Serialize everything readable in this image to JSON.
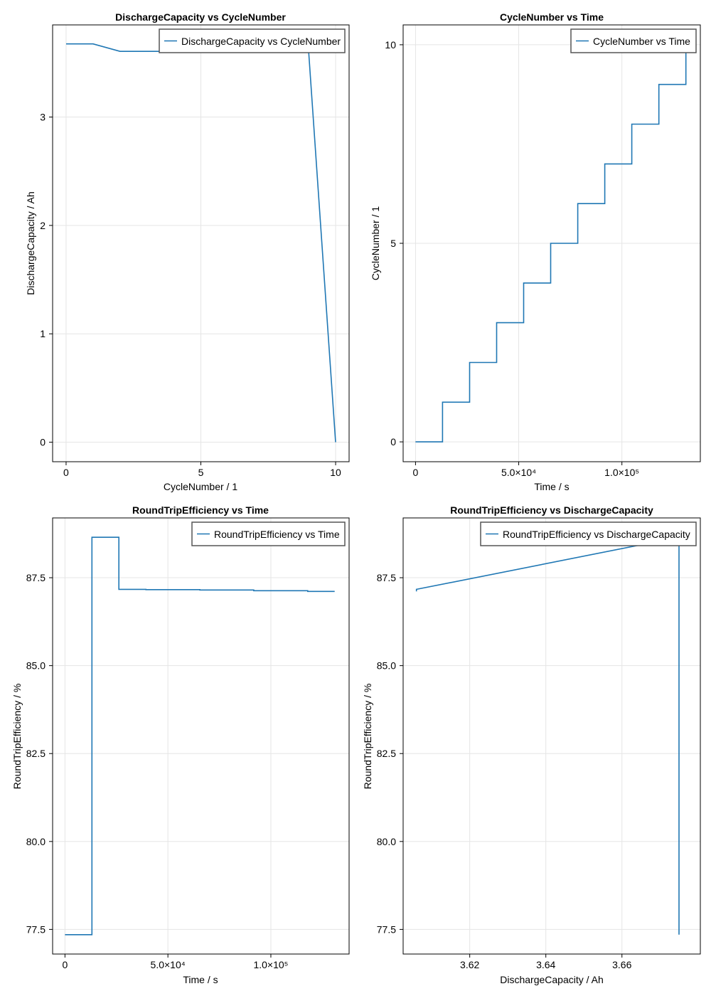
{
  "colors": {
    "series": "#1f77b4",
    "grid": "#e5e5e5",
    "frame": "#000000"
  },
  "chart_data": [
    {
      "type": "line",
      "title": "DischargeCapacity vs CycleNumber",
      "xlabel": "CycleNumber  /  1",
      "ylabel": "DischargeCapacity  / Ah",
      "xlim": [
        -0.5,
        10.5
      ],
      "ylim": [
        -0.18,
        3.85
      ],
      "xticks": [
        0,
        5,
        10
      ],
      "xtick_labels": [
        "0",
        "5",
        "10"
      ],
      "yticks": [
        0,
        1,
        2,
        3
      ],
      "ytick_labels": [
        "0",
        "1",
        "2",
        "3"
      ],
      "legend": "top-right",
      "grid": true,
      "series": [
        {
          "name": "DischargeCapacity vs CycleNumber",
          "x": [
            0,
            1,
            2,
            3,
            4,
            5,
            6,
            7,
            8,
            9,
            10
          ],
          "y": [
            3.675,
            3.675,
            3.606,
            3.606,
            3.606,
            3.606,
            3.606,
            3.606,
            3.606,
            3.606,
            0
          ]
        }
      ]
    },
    {
      "type": "line",
      "title": "CycleNumber vs Time",
      "xlabel": "Time  /  s",
      "ylabel": "CycleNumber  /  1",
      "xlim": [
        -6000,
        138000
      ],
      "ylim": [
        -0.5,
        10.5
      ],
      "xticks": [
        0,
        50000,
        100000
      ],
      "xtick_labels": [
        "0",
        "5.0×10⁴",
        "1.0×10⁵"
      ],
      "yticks": [
        0,
        5,
        10
      ],
      "ytick_labels": [
        "0",
        "5",
        "10"
      ],
      "legend": "top-right",
      "grid": true,
      "series": [
        {
          "name": "CycleNumber vs Time",
          "x": [
            0,
            13100,
            13100,
            26200,
            26200,
            39300,
            39300,
            52400,
            52400,
            65500,
            65500,
            78600,
            78600,
            91700,
            91700,
            104800,
            104800,
            117900,
            117900,
            131000,
            131000
          ],
          "y": [
            0,
            0,
            1,
            1,
            2,
            2,
            3,
            3,
            4,
            4,
            5,
            5,
            6,
            6,
            7,
            7,
            8,
            8,
            9,
            9,
            10
          ]
        }
      ]
    },
    {
      "type": "line",
      "title": "RoundTripEfficiency vs Time",
      "xlabel": "Time  /  s",
      "ylabel": "RoundTripEfficiency  / %",
      "xlim": [
        -6000,
        138000
      ],
      "ylim": [
        76.8,
        89.2
      ],
      "xticks": [
        0,
        50000,
        100000
      ],
      "xtick_labels": [
        "0",
        "5.0×10⁴",
        "1.0×10⁵"
      ],
      "yticks": [
        77.5,
        80,
        82.5,
        85,
        87.5
      ],
      "ytick_labels": [
        "77.5",
        "80.0",
        "82.5",
        "85.0",
        "87.5"
      ],
      "legend": "top-right",
      "grid": true,
      "series": [
        {
          "name": "RoundTripEfficiency vs Time",
          "x": [
            0,
            13100,
            13100,
            26200,
            26200,
            39300,
            39300,
            52400,
            52400,
            65500,
            65500,
            78600,
            78600,
            91700,
            91700,
            104800,
            104800,
            117900,
            117900,
            131000
          ],
          "y": [
            77.35,
            77.35,
            88.65,
            88.65,
            87.17,
            87.17,
            87.16,
            87.16,
            87.16,
            87.16,
            87.15,
            87.15,
            87.15,
            87.15,
            87.13,
            87.13,
            87.13,
            87.13,
            87.11,
            87.11
          ]
        }
      ]
    },
    {
      "type": "line",
      "title": "RoundTripEfficiency vs DischargeCapacity",
      "xlabel": "DischargeCapacity  /  Ah",
      "ylabel": "RoundTripEfficiency  / %",
      "xlim": [
        3.6025,
        3.6806
      ],
      "ylim": [
        76.8,
        89.2
      ],
      "xticks": [
        3.62,
        3.64,
        3.66
      ],
      "xtick_labels": [
        "3.62",
        "3.64",
        "3.66"
      ],
      "yticks": [
        77.5,
        80,
        82.5,
        85,
        87.5
      ],
      "ytick_labels": [
        "77.5",
        "80.0",
        "82.5",
        "85.0",
        "87.5"
      ],
      "legend": "top-right",
      "grid": true,
      "series": [
        {
          "name": "RoundTripEfficiency vs DischargeCapacity",
          "x": [
            3.606,
            3.606,
            3.675,
            3.675
          ],
          "y": [
            87.11,
            87.17,
            88.65,
            77.35
          ]
        }
      ]
    }
  ]
}
